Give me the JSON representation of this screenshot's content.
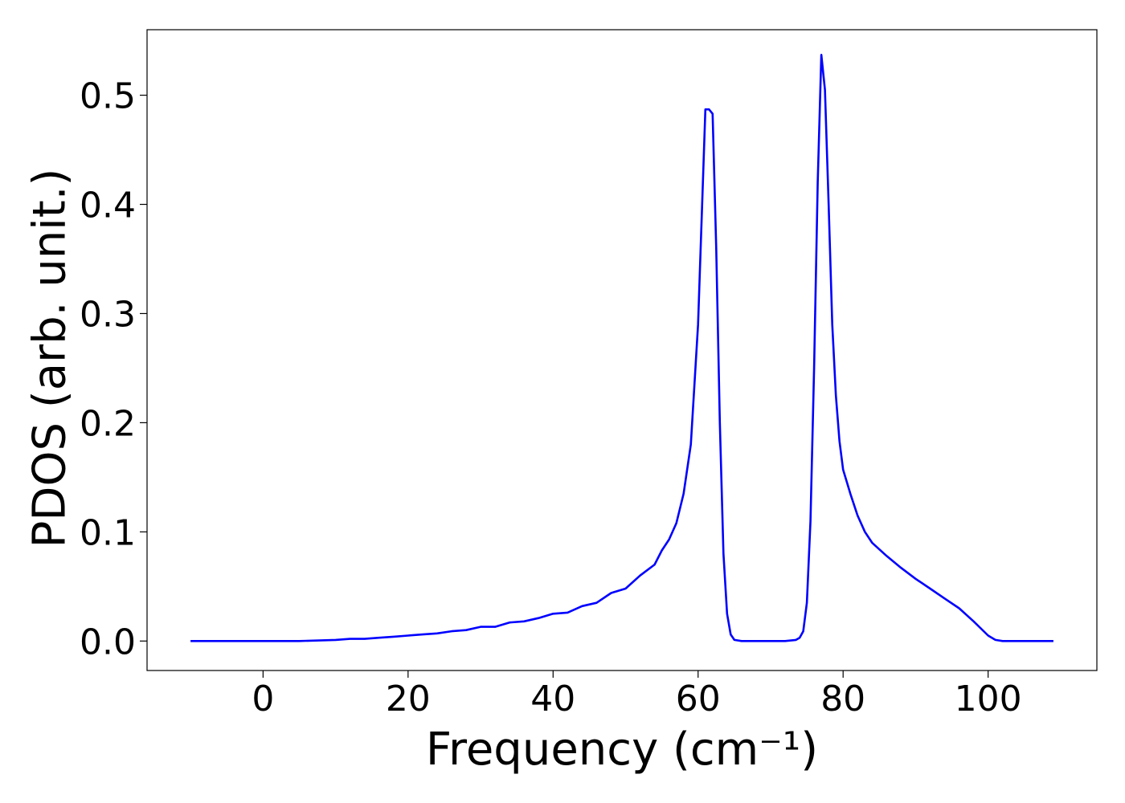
{
  "chart_data": {
    "type": "line",
    "xlabel": "Frequency (cm⁻¹)",
    "ylabel": "PDOS (arb. unit.)",
    "xlim": [
      -16,
      115
    ],
    "ylim": [
      -0.027,
      0.56
    ],
    "xticks": [
      0,
      20,
      40,
      60,
      80,
      100
    ],
    "yticks": [
      0.0,
      0.1,
      0.2,
      0.3,
      0.4,
      0.5
    ],
    "ytick_labels": [
      "0.0",
      "0.1",
      "0.2",
      "0.3",
      "0.4",
      "0.5"
    ],
    "grid": false,
    "series": [
      {
        "color": "#0000ff",
        "x": [
          -10,
          -5,
          0,
          5,
          10,
          12,
          14,
          16,
          18,
          20,
          22,
          24,
          26,
          28,
          30,
          32,
          34,
          36,
          38,
          40,
          42,
          44,
          46,
          48,
          50,
          52,
          54,
          55,
          56,
          57,
          58,
          59,
          60,
          61,
          61.5,
          62,
          62.5,
          63,
          63.5,
          64,
          64.5,
          65,
          66,
          68,
          70,
          72,
          73.5,
          74,
          74.5,
          75,
          75.5,
          76,
          76.5,
          77,
          77.5,
          78,
          78.5,
          79,
          79.5,
          80,
          81,
          82,
          83,
          84,
          86,
          88,
          90,
          92,
          94,
          96,
          98,
          100,
          101,
          102,
          105,
          109
        ],
        "y": [
          0,
          0,
          0,
          0,
          0.001,
          0.002,
          0.002,
          0.003,
          0.004,
          0.005,
          0.006,
          0.007,
          0.009,
          0.01,
          0.013,
          0.013,
          0.017,
          0.018,
          0.021,
          0.025,
          0.026,
          0.032,
          0.035,
          0.044,
          0.048,
          0.06,
          0.07,
          0.083,
          0.093,
          0.108,
          0.135,
          0.18,
          0.29,
          0.487,
          0.487,
          0.483,
          0.36,
          0.2,
          0.08,
          0.025,
          0.006,
          0.001,
          0,
          0,
          0,
          0,
          0.001,
          0.003,
          0.009,
          0.035,
          0.11,
          0.25,
          0.42,
          0.537,
          0.505,
          0.4,
          0.29,
          0.225,
          0.183,
          0.157,
          0.135,
          0.115,
          0.1,
          0.09,
          0.078,
          0.067,
          0.057,
          0.048,
          0.039,
          0.03,
          0.018,
          0.005,
          0.001,
          0,
          0,
          0
        ]
      }
    ]
  }
}
